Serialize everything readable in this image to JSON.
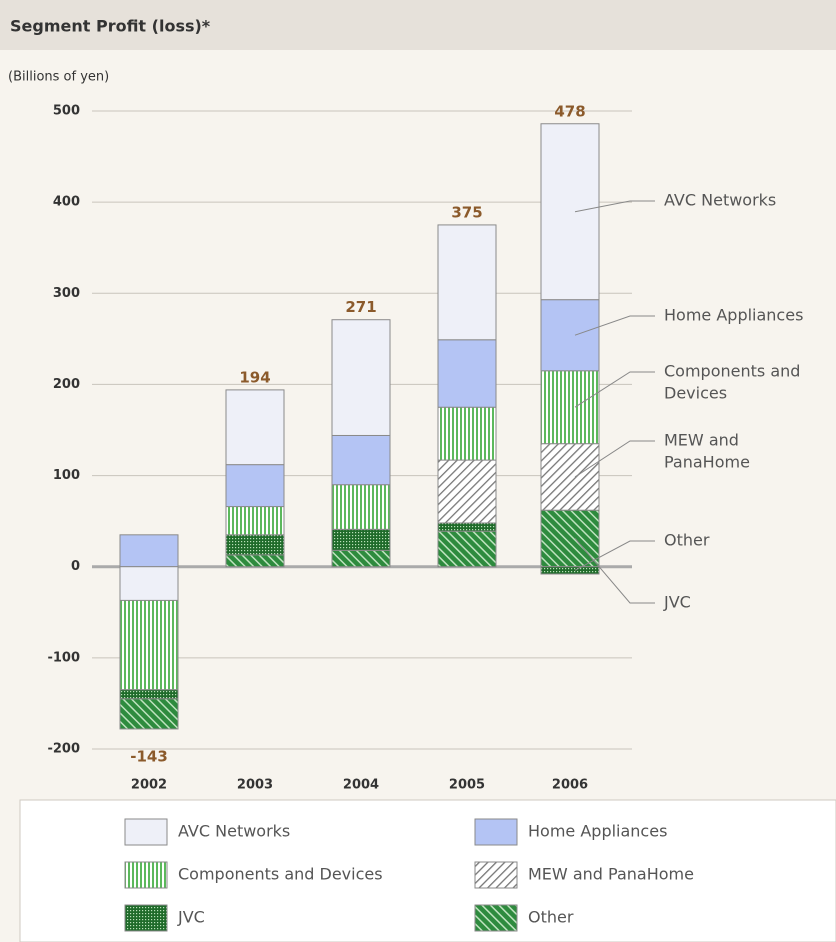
{
  "chart_data": {
    "type": "stacked_bar",
    "title": "Segment Profit (loss)*",
    "y_label": "(Billions of yen)",
    "categories": [
      "2002",
      "2003",
      "2004",
      "2005",
      "2006"
    ],
    "series": [
      {
        "name": "AVC Networks",
        "color": "#eef0f8",
        "values": [
          -37,
          82,
          127,
          126,
          193
        ]
      },
      {
        "name": "Home Appliances",
        "color": "#b4c4f4",
        "values": [
          35,
          46,
          54,
          74,
          78
        ]
      },
      {
        "name": "Components and Devices",
        "color": "#5cb85c",
        "values": [
          -98,
          31,
          49,
          58,
          80
        ]
      },
      {
        "name": "MEW and PanaHome",
        "color": "#777777",
        "values": [
          null,
          null,
          null,
          69,
          73
        ]
      },
      {
        "name": "JVC",
        "color": "#1f6b2a",
        "values": [
          -10,
          22,
          23,
          9,
          -8
        ]
      },
      {
        "name": "Other",
        "color": "#2e8b3e",
        "values": [
          -33,
          13,
          18,
          39,
          62
        ]
      }
    ],
    "totals": [
      -143,
      194,
      271,
      375,
      478
    ],
    "annotations": [
      [
        "AVC Networks"
      ],
      [
        "Home Appliances"
      ],
      [
        "Components and",
        "Devices"
      ],
      [
        "MEW and",
        "PanaHome"
      ],
      [
        "Other"
      ],
      [
        "JVC"
      ]
    ],
    "ylim": [
      -200,
      500
    ],
    "yticks": [
      -200,
      -100,
      0,
      100,
      200,
      300,
      400,
      500
    ],
    "grid": true
  }
}
